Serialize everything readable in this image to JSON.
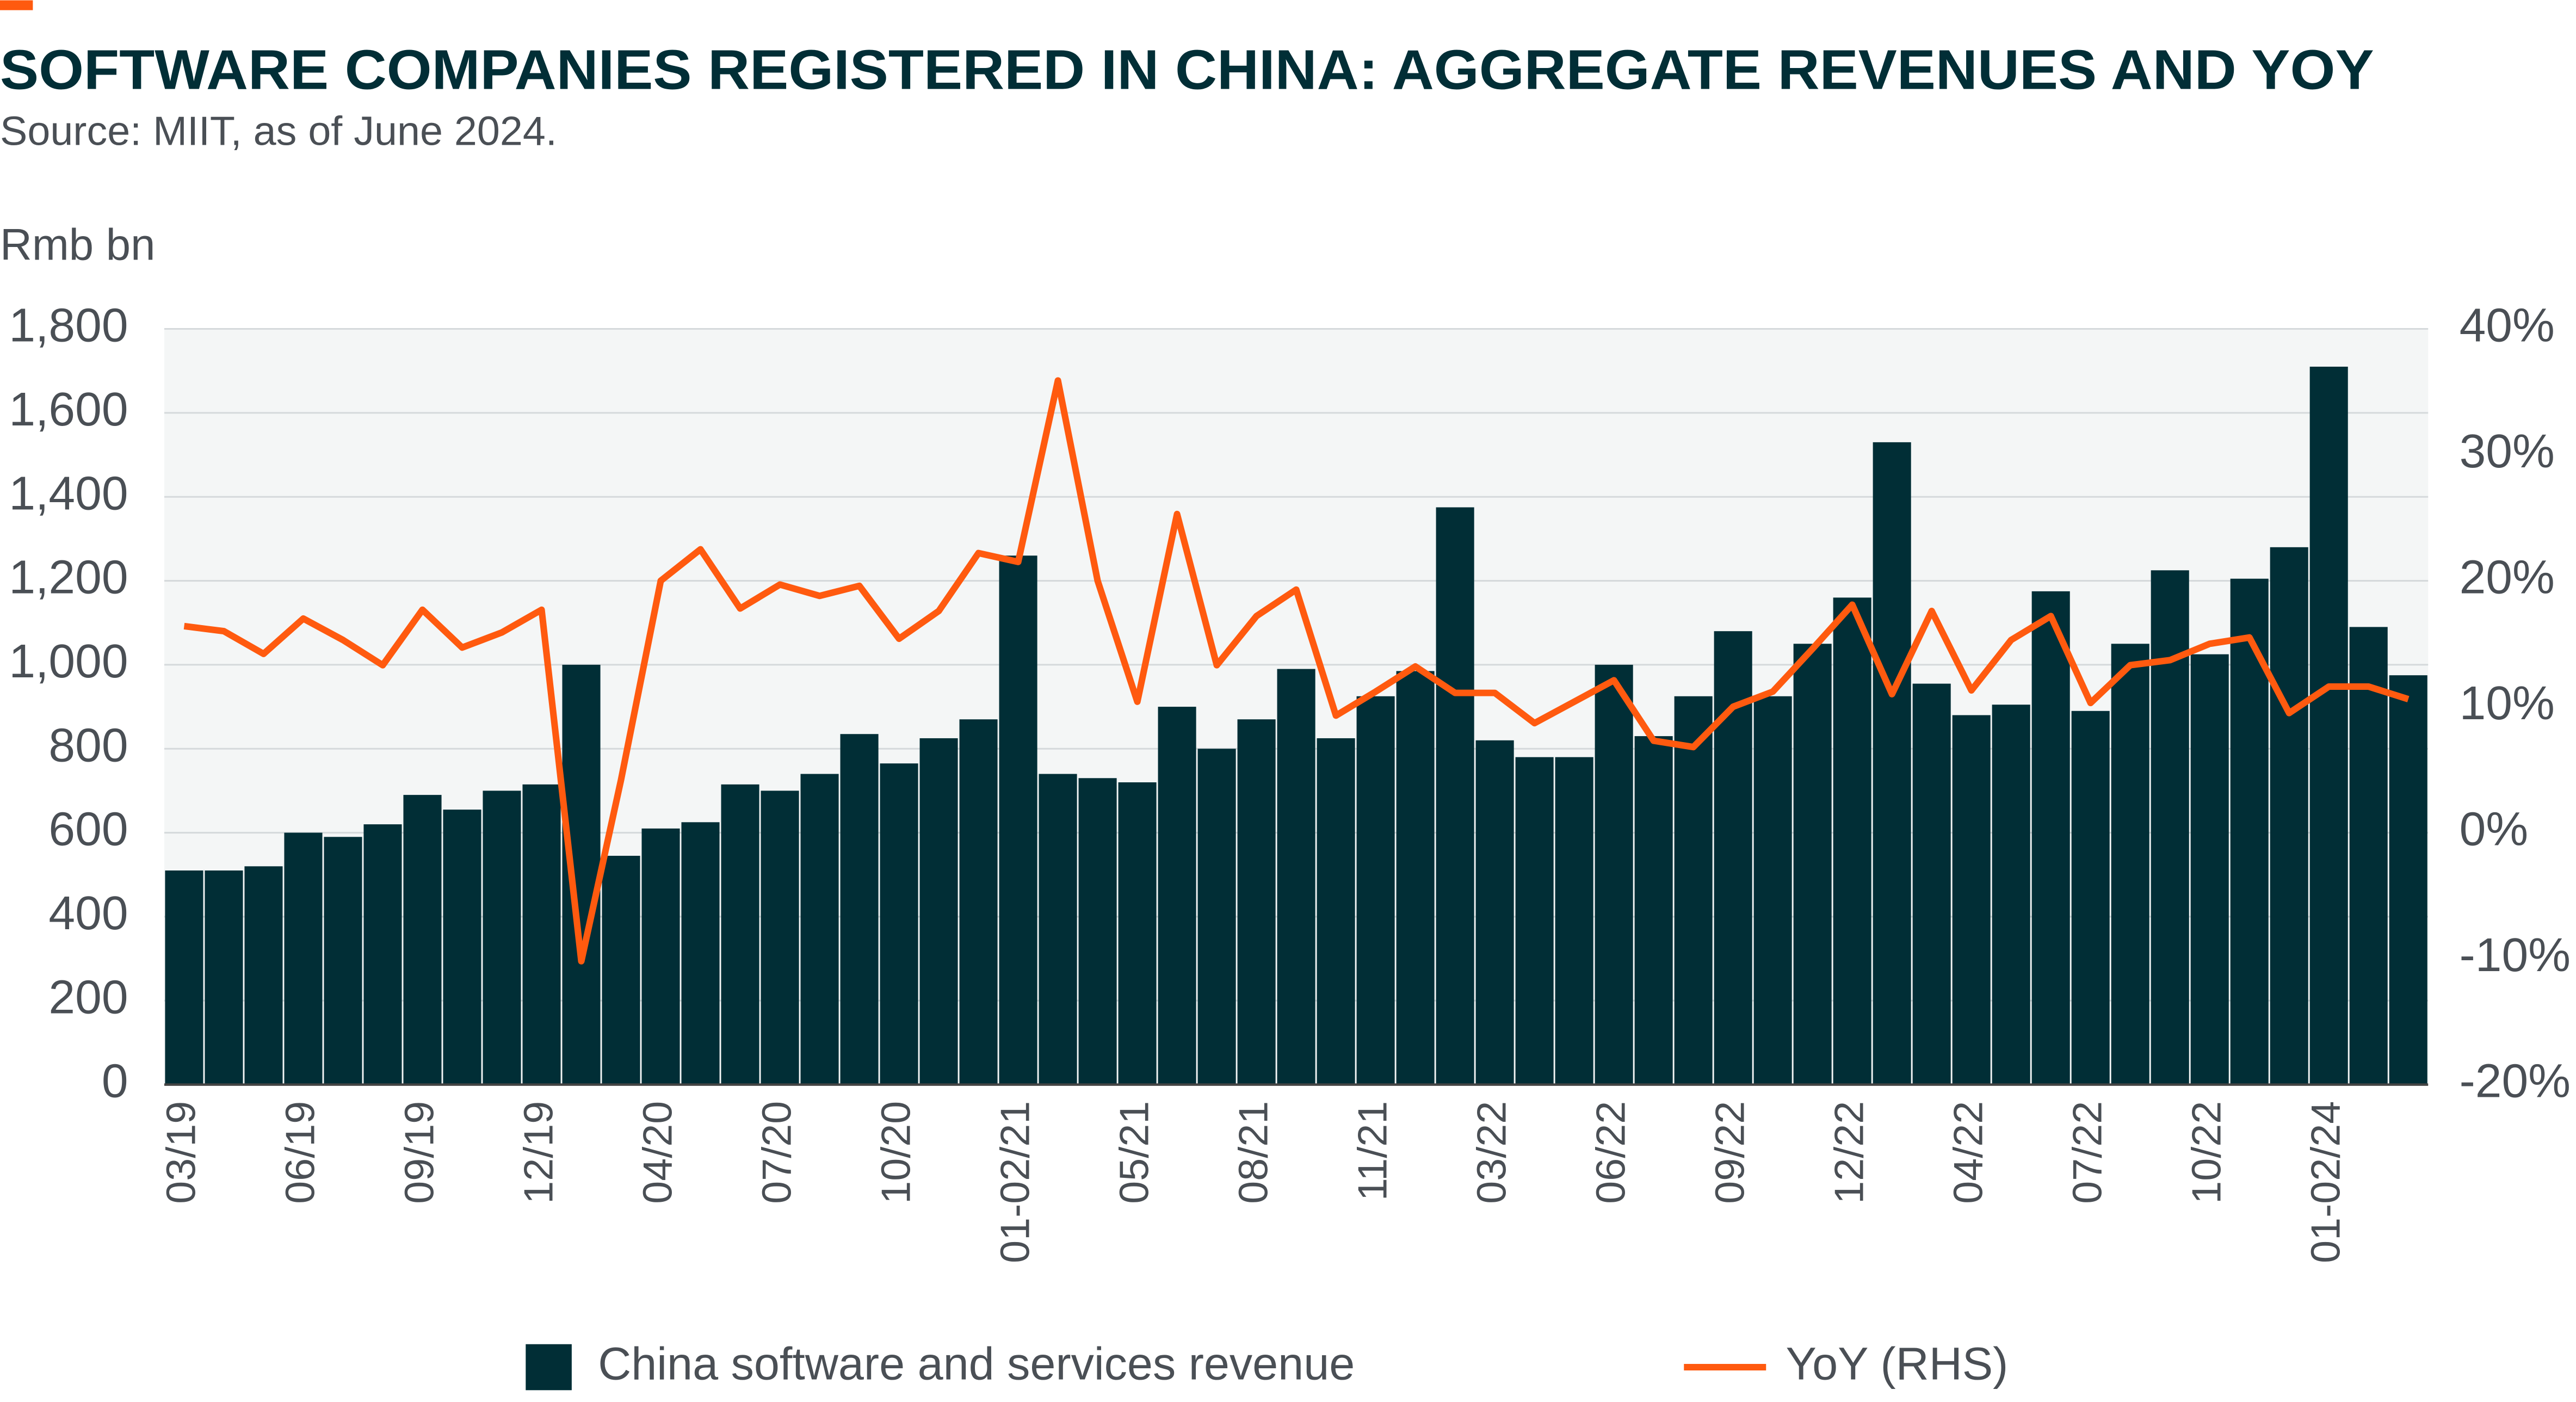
{
  "chart_data": {
    "type": "bar_line",
    "title": "SOFTWARE COMPANIES REGISTERED IN CHINA: AGGREGATE REVENUES AND YOY",
    "subtitle": "Source: MIIT, as of June 2024.",
    "y_label": "Rmb bn",
    "categories": [
      "03/19",
      null,
      null,
      "06/19",
      null,
      null,
      "09/19",
      null,
      null,
      "12/19",
      null,
      null,
      "04/20",
      null,
      null,
      "07/20",
      null,
      null,
      "10/20",
      null,
      null,
      "01-02/21",
      null,
      null,
      "05/21",
      null,
      null,
      "08/21",
      null,
      null,
      "11/21",
      null,
      null,
      "03/22",
      null,
      null,
      "06/22",
      null,
      null,
      "09/22",
      null,
      null,
      "12/22",
      null,
      null,
      "04/22",
      null,
      null,
      "07/22",
      null,
      null,
      "10/22",
      null,
      null,
      "01-02/24",
      null,
      null
    ],
    "series": [
      {
        "name": "China software and services revenue",
        "type": "bar",
        "color": "#012e36",
        "values": [
          510,
          510,
          520,
          600,
          590,
          620,
          690,
          655,
          700,
          715,
          1000,
          545,
          610,
          625,
          715,
          700,
          740,
          835,
          765,
          825,
          870,
          1260,
          740,
          730,
          720,
          900,
          800,
          870,
          990,
          825,
          925,
          985,
          1375,
          820,
          780,
          780,
          1000,
          830,
          925,
          1080,
          925,
          1050,
          1160,
          1530,
          955,
          880,
          905,
          1175,
          890,
          1050,
          1225,
          1025,
          1205,
          1280,
          1710,
          1090,
          975
        ]
      },
      {
        "name": "YoY (RHS)",
        "type": "line",
        "axis": "y2",
        "color": "#ff5a0f",
        "values": [
          16.4,
          16,
          14.2,
          17,
          15.3,
          13.3,
          17.7,
          14.7,
          15.9,
          17.7,
          -10.2,
          4.2,
          20,
          22.5,
          17.8,
          19.7,
          18.8,
          19.6,
          15.4,
          17.6,
          22.2,
          21.5,
          35.9,
          20,
          10.4,
          25.3,
          13.3,
          17.2,
          19.3,
          9.3,
          11.2,
          13.2,
          11.1,
          11.1,
          8.7,
          10.4,
          12.1,
          7.3,
          6.8,
          10,
          11.2,
          14.6,
          18.1,
          11,
          17.6,
          11.3,
          15.3,
          17.2,
          10.3,
          13.3,
          13.7,
          15,
          15.5,
          9.5,
          11.6,
          11.6,
          10.6
        ]
      }
    ],
    "ylim": [
      0,
      1800
    ],
    "yticks": [
      0,
      200,
      400,
      600,
      800,
      {
        "value": 1000,
        "label": "1,000"
      },
      {
        "value": 1200,
        "label": "1,200"
      },
      {
        "value": 1400,
        "label": "1,400"
      },
      {
        "value": 1600,
        "label": "1,600"
      },
      {
        "value": 1800,
        "label": "1,800"
      }
    ],
    "y2lim": [
      -20,
      40
    ],
    "y2ticks": [
      {
        "value": -20,
        "label": "-20%"
      },
      {
        "value": -10,
        "label": "-10%"
      },
      {
        "value": 0,
        "label": "0%"
      },
      {
        "value": 10,
        "label": "10%"
      },
      {
        "value": 20,
        "label": "20%"
      },
      {
        "value": 30,
        "label": "30%"
      },
      {
        "value": 40,
        "label": "40%"
      }
    ],
    "grid": true,
    "legend": "bottom"
  }
}
